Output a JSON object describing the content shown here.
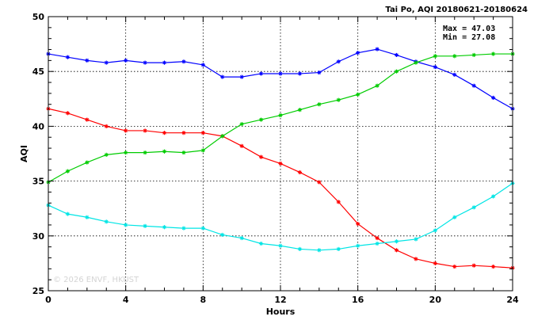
{
  "chart_data": {
    "type": "line",
    "title": "Tai Po, AQI 20180621-20180624",
    "xlabel": "Hours",
    "ylabel": "AQI",
    "xlim": [
      0,
      24
    ],
    "ylim": [
      25,
      50
    ],
    "xticks": [
      "0",
      "4",
      "8",
      "12",
      "16",
      "20",
      "24"
    ],
    "yticks": [
      "25",
      "30",
      "35",
      "40",
      "45",
      "50"
    ],
    "grid": true,
    "stats": {
      "max": "Max = 47.03",
      "min": "Min = 27.08"
    },
    "watermark": "© 2026  ENVF, HKUST",
    "x": [
      0,
      1,
      2,
      3,
      4,
      5,
      6,
      7,
      8,
      9,
      10,
      11,
      12,
      13,
      14,
      15,
      16,
      17,
      18,
      19,
      20,
      21,
      22,
      23,
      24
    ],
    "series": [
      {
        "color": "#0000ff",
        "values": [
          46.6,
          46.3,
          46.0,
          45.8,
          46.0,
          45.8,
          45.8,
          45.9,
          45.6,
          44.5,
          44.5,
          44.8,
          44.8,
          44.8,
          44.9,
          45.9,
          46.7,
          47.03,
          46.5,
          45.9,
          45.4,
          44.7,
          43.7,
          42.6,
          41.6
        ]
      },
      {
        "color": "#ff0000",
        "values": [
          41.6,
          41.2,
          40.6,
          40.0,
          39.6,
          39.6,
          39.4,
          39.4,
          39.4,
          39.1,
          38.2,
          37.2,
          36.6,
          35.8,
          34.9,
          33.1,
          31.1,
          29.8,
          28.7,
          27.9,
          27.5,
          27.2,
          27.3,
          27.2,
          27.08
        ]
      },
      {
        "color": "#00cc00",
        "values": [
          34.9,
          35.9,
          36.7,
          37.4,
          37.6,
          37.6,
          37.7,
          37.6,
          37.8,
          39.1,
          40.2,
          40.6,
          41.0,
          41.5,
          42.0,
          42.4,
          42.9,
          43.7,
          45.0,
          45.8,
          46.4,
          46.4,
          46.5,
          46.6,
          46.6
        ]
      },
      {
        "color": "#00e5e5",
        "values": [
          32.8,
          32.0,
          31.7,
          31.3,
          31.0,
          30.9,
          30.8,
          30.7,
          30.7,
          30.1,
          29.8,
          29.3,
          29.1,
          28.8,
          28.7,
          28.8,
          29.1,
          29.3,
          29.5,
          29.7,
          30.5,
          31.7,
          32.6,
          33.6,
          34.8
        ]
      }
    ]
  }
}
